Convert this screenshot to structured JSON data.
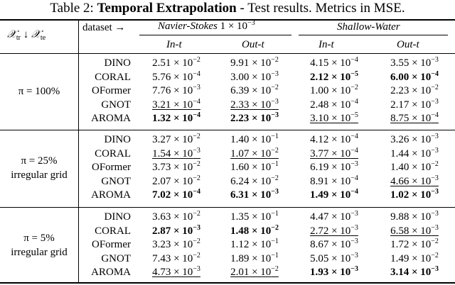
{
  "caption": {
    "prefix": "Table 2: ",
    "title": "Temporal Extrapolation",
    "suffix": " - Test results. Metrics in MSE."
  },
  "header": {
    "corner_label": "𝒳_tr ↓ 𝒳_te",
    "dataset_label": "dataset →",
    "group1": "Navier-Stokes 1 × 10⁻³",
    "group2": "Shallow-Water",
    "subcols": [
      "In-t",
      "Out-t",
      "In-t",
      "Out-t"
    ]
  },
  "groups": [
    {
      "label_lines": [
        "π = 100%"
      ],
      "rows": [
        {
          "model": "DINO",
          "cells": [
            {
              "m": "2.51",
              "e": "−2"
            },
            {
              "m": "9.91",
              "e": "−2"
            },
            {
              "m": "4.15",
              "e": "−4"
            },
            {
              "m": "3.55",
              "e": "−3"
            }
          ]
        },
        {
          "model": "CORAL",
          "cells": [
            {
              "m": "5.76",
              "e": "−4"
            },
            {
              "m": "3.00",
              "e": "−3"
            },
            {
              "m": "2.12",
              "e": "−5",
              "s": "bold"
            },
            {
              "m": "6.00",
              "e": "−4",
              "s": "bold"
            }
          ]
        },
        {
          "model": "OFormer",
          "cells": [
            {
              "m": "7.76",
              "e": "−3"
            },
            {
              "m": "6.39",
              "e": "−2"
            },
            {
              "m": "1.00",
              "e": "−2"
            },
            {
              "m": "2.23",
              "e": "−2"
            }
          ]
        },
        {
          "model": "GNOT",
          "cells": [
            {
              "m": "3.21",
              "e": "−4",
              "s": "ul"
            },
            {
              "m": "2.33",
              "e": "−3",
              "s": "ul"
            },
            {
              "m": "2.48",
              "e": "−4"
            },
            {
              "m": "2.17",
              "e": "−3"
            }
          ]
        },
        {
          "model": "AROMA",
          "cells": [
            {
              "m": "1.32",
              "e": "−4",
              "s": "bold"
            },
            {
              "m": "2.23",
              "e": "−3",
              "s": "bold"
            },
            {
              "m": "3.10",
              "e": "−5",
              "s": "ul"
            },
            {
              "m": "8.75",
              "e": "−4",
              "s": "ul"
            }
          ]
        }
      ]
    },
    {
      "label_lines": [
        "π = 25%",
        "irregular grid"
      ],
      "rows": [
        {
          "model": "DINO",
          "cells": [
            {
              "m": "3.27",
              "e": "−2"
            },
            {
              "m": "1.40",
              "e": "−1"
            },
            {
              "m": "4.12",
              "e": "−4"
            },
            {
              "m": "3.26",
              "e": "−3"
            }
          ]
        },
        {
          "model": "CORAL",
          "cells": [
            {
              "m": "1.54",
              "e": "−3",
              "s": "ul"
            },
            {
              "m": "1.07",
              "e": "−2",
              "s": "ul"
            },
            {
              "m": "3.77",
              "e": "−4",
              "s": "ul"
            },
            {
              "m": "1.44",
              "e": "−3"
            }
          ]
        },
        {
          "model": "OFormer",
          "cells": [
            {
              "m": "3.73",
              "e": "−2"
            },
            {
              "m": "1.60",
              "e": "−1"
            },
            {
              "m": "6.19",
              "e": "−3"
            },
            {
              "m": "1.40",
              "e": "−2"
            }
          ]
        },
        {
          "model": "GNOT",
          "cells": [
            {
              "m": "2.07",
              "e": "−2"
            },
            {
              "m": "6.24",
              "e": "−2"
            },
            {
              "m": "8.91",
              "e": "−4"
            },
            {
              "m": "4.66",
              "e": "−3",
              "s": "ul"
            }
          ]
        },
        {
          "model": "AROMA",
          "cells": [
            {
              "m": "7.02",
              "e": "−4",
              "s": "bold"
            },
            {
              "m": "6.31",
              "e": "−3",
              "s": "bold"
            },
            {
              "m": "1.49",
              "e": "−4",
              "s": "bold"
            },
            {
              "m": "1.02",
              "e": "−3",
              "s": "bold"
            }
          ]
        }
      ]
    },
    {
      "label_lines": [
        "π = 5%",
        "irregular grid"
      ],
      "rows": [
        {
          "model": "DINO",
          "cells": [
            {
              "m": "3.63",
              "e": "−2"
            },
            {
              "m": "1.35",
              "e": "−1"
            },
            {
              "m": "4.47",
              "e": "−3"
            },
            {
              "m": "9.88",
              "e": "−3"
            }
          ]
        },
        {
          "model": "CORAL",
          "cells": [
            {
              "m": "2.87",
              "e": "−3",
              "s": "bold"
            },
            {
              "m": "1.48",
              "e": "−2",
              "s": "bold"
            },
            {
              "m": "2.72",
              "e": "−3",
              "s": "ul"
            },
            {
              "m": "6.58",
              "e": "−3",
              "s": "ul"
            }
          ]
        },
        {
          "model": "OFormer",
          "cells": [
            {
              "m": "3.23",
              "e": "−2"
            },
            {
              "m": "1.12",
              "e": "−1"
            },
            {
              "m": "8.67",
              "e": "−3"
            },
            {
              "m": "1.72",
              "e": "−2"
            }
          ]
        },
        {
          "model": "GNOT",
          "cells": [
            {
              "m": "7.43",
              "e": "−2"
            },
            {
              "m": "1.89",
              "e": "−1"
            },
            {
              "m": "5.05",
              "e": "−3"
            },
            {
              "m": "1.49",
              "e": "−2"
            }
          ]
        },
        {
          "model": "AROMA",
          "cells": [
            {
              "m": "4.73",
              "e": "−3",
              "s": "ul"
            },
            {
              "m": "2.01",
              "e": "−2",
              "s": "ul"
            },
            {
              "m": "1.93",
              "e": "−3",
              "s": "bold"
            },
            {
              "m": "3.14",
              "e": "−3",
              "s": "bold"
            }
          ]
        }
      ]
    }
  ]
}
